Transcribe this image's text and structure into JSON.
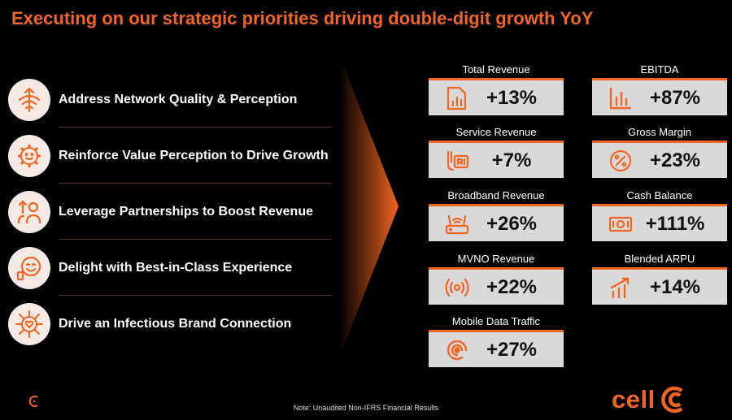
{
  "title": "Executing on our strategic priorities driving double-digit growth YoY",
  "priorities": [
    {
      "label": "Address Network Quality & Perception",
      "icon": "network-icon"
    },
    {
      "label": "Reinforce Value Perception to Drive Growth",
      "icon": "gear-smile-icon"
    },
    {
      "label": "Leverage Partnerships to Boost Revenue",
      "icon": "partnership-icon"
    },
    {
      "label": "Delight with Best-in-Class Experience",
      "icon": "delight-icon"
    },
    {
      "label": "Drive an Infectious Brand Connection",
      "icon": "heart-network-icon"
    }
  ],
  "metrics": {
    "total_revenue": {
      "label": "Total Revenue",
      "value": "+13%",
      "icon": "document-chart-icon"
    },
    "ebitda": {
      "label": "EBITDA",
      "value": "+87%",
      "icon": "bar-chart-icon"
    },
    "service_revenue": {
      "label": "Service Revenue",
      "value": "+7%",
      "icon": "service-icon"
    },
    "gross_margin": {
      "label": "Gross Margin",
      "value": "+23%",
      "icon": "percent-icon"
    },
    "broadband_revenue": {
      "label": "Broadband Revenue",
      "value": "+26%",
      "icon": "router-icon"
    },
    "cash_balance": {
      "label": "Cash Balance",
      "value": "+111%",
      "icon": "cash-icon"
    },
    "mvno_revenue": {
      "label": "MVNO Revenue",
      "value": "+22%",
      "icon": "broadcast-icon"
    },
    "blended_arpu": {
      "label": "Blended ARPU",
      "value": "+14%",
      "icon": "growth-icon"
    },
    "mobile_data_traffic": {
      "label": "Mobile Data Traffic",
      "value": "+27%",
      "icon": "signal-icon"
    }
  },
  "note": "Note: Unaudited Non-IFRS Financial Results",
  "brand": {
    "name": "cell",
    "accent": "#f26522"
  }
}
